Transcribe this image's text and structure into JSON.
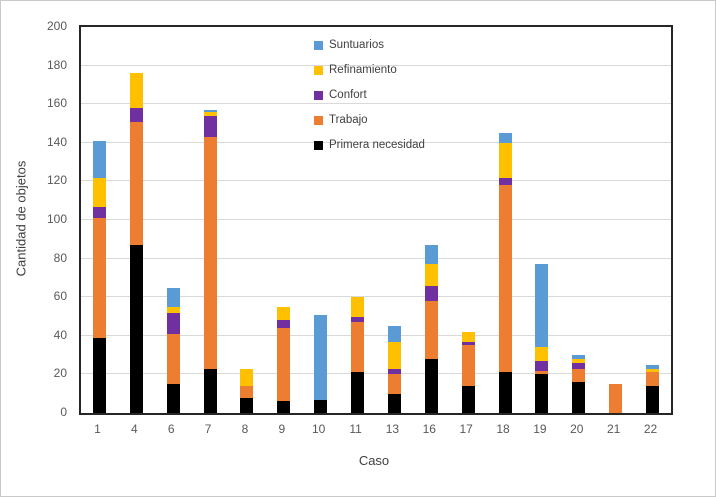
{
  "chart_data": {
    "type": "bar",
    "stacked": true,
    "title": "",
    "xlabel": "Caso",
    "ylabel": "Cantidad de objetos",
    "ylim": [
      0,
      200
    ],
    "ytick_step": 20,
    "yticks": [
      0,
      20,
      40,
      60,
      80,
      100,
      120,
      140,
      160,
      180,
      200
    ],
    "grid": true,
    "legend_position": "top-center-inside",
    "categories": [
      "1",
      "4",
      "6",
      "7",
      "8",
      "9",
      "10",
      "11",
      "13",
      "16",
      "17",
      "18",
      "19",
      "20",
      "21",
      "22"
    ],
    "series": [
      {
        "name": "Primera necesidad",
        "color": "#000000",
        "values": [
          39,
          87,
          15,
          23,
          8,
          6,
          7,
          21,
          10,
          28,
          14,
          21,
          20,
          16,
          0,
          14
        ]
      },
      {
        "name": "Trabajo",
        "color": "#ED7D31",
        "values": [
          62,
          64,
          26,
          120,
          6,
          38,
          0,
          26,
          10,
          30,
          21,
          97,
          2,
          7,
          15,
          7
        ]
      },
      {
        "name": "Confort",
        "color": "#7030A0",
        "values": [
          6,
          7,
          11,
          11,
          0,
          4,
          0,
          3,
          3,
          8,
          2,
          4,
          5,
          3,
          0,
          0
        ]
      },
      {
        "name": "Refinamiento",
        "color": "#FFC000",
        "values": [
          15,
          18,
          3,
          2,
          9,
          7,
          0,
          10,
          14,
          11,
          5,
          18,
          7,
          2,
          0,
          2
        ]
      },
      {
        "name": "Suntuarios",
        "color": "#5B9BD5",
        "values": [
          19,
          0,
          10,
          1,
          0,
          0,
          44,
          0,
          8,
          10,
          0,
          5,
          43,
          2,
          0,
          2
        ]
      }
    ],
    "legend_order": [
      "Suntuarios",
      "Refinamiento",
      "Confort",
      "Trabajo",
      "Primera necesidad"
    ]
  },
  "axes": {
    "y_title": "Cantidad de objetos",
    "x_title": "Caso"
  },
  "style": {
    "gridline_color": "#d9d9d9",
    "tick_text_color": "#595959",
    "axis_title_color": "#404040",
    "plot_border_color": "#262626",
    "background_color": "#ffffff"
  }
}
